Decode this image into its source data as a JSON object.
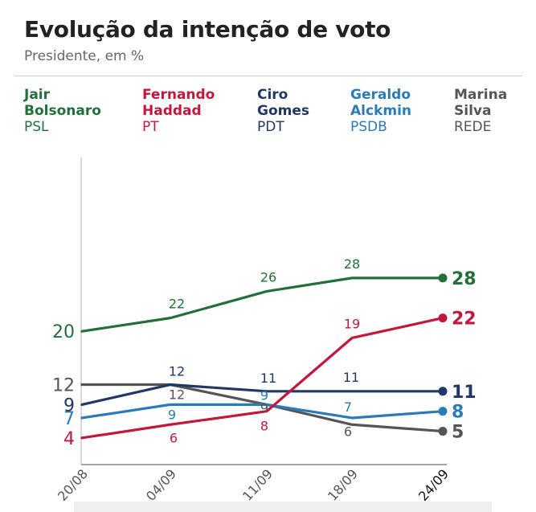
{
  "title": "Evolução da intenção de voto",
  "subtitle": "Presidente, em %",
  "legend": [
    {
      "name1": "Jair",
      "name2": "Bolsonaro",
      "party": "PSL",
      "color": "#21703a"
    },
    {
      "name1": "Fernando",
      "name2": "Haddad",
      "party": "PT",
      "color": "#c4173c"
    },
    {
      "name1": "Ciro",
      "name2": "Gomes",
      "party": "PDT",
      "color": "#1f3868"
    },
    {
      "name1": "Geraldo",
      "name2": "Alckmin",
      "party": "PSDB",
      "color": "#2a7bb8"
    },
    {
      "name1": "Marina",
      "name2": "Silva",
      "party": "REDE",
      "color": "#555555"
    }
  ],
  "chart_data": {
    "type": "line",
    "categories": [
      "20/08",
      "04/09",
      "11/09",
      "18/09",
      "24/09"
    ],
    "ylim": [
      0,
      30
    ],
    "grid": false,
    "series": [
      {
        "name": "Jair Bolsonaro",
        "color": "#21703a",
        "values": [
          20,
          22,
          26,
          28,
          28
        ]
      },
      {
        "name": "Fernando Haddad",
        "color": "#c4173c",
        "values": [
          4,
          6,
          8,
          19,
          22
        ]
      },
      {
        "name": "Ciro Gomes",
        "color": "#1f3868",
        "values": [
          9,
          12,
          11,
          11,
          11
        ]
      },
      {
        "name": "Geraldo Alckmin",
        "color": "#2a7bb8",
        "values": [
          7,
          9,
          9,
          7,
          8
        ]
      },
      {
        "name": "Marina Silva",
        "color": "#555555",
        "values": [
          12,
          12,
          9,
          6,
          5
        ]
      }
    ]
  }
}
